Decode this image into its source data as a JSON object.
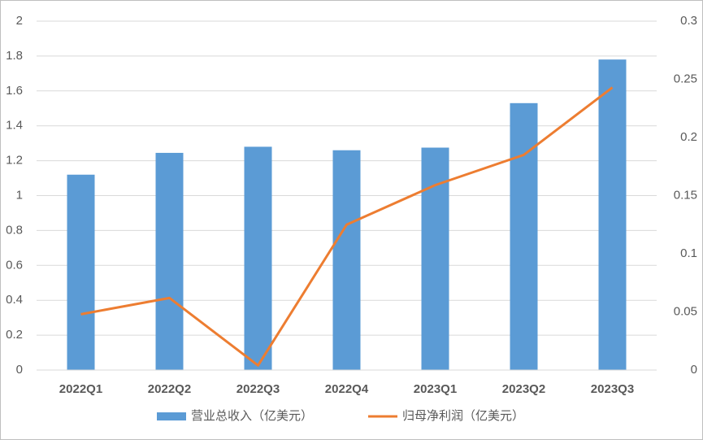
{
  "chart_data": {
    "type": "bar-line",
    "categories": [
      "2022Q1",
      "2022Q2",
      "2022Q3",
      "2022Q4",
      "2023Q1",
      "2023Q2",
      "2023Q3"
    ],
    "series": [
      {
        "name": "营业总收入（亿美元）",
        "type": "bar",
        "color": "#5b9bd5",
        "values": [
          1.12,
          1.245,
          1.28,
          1.26,
          1.275,
          1.53,
          1.78
        ]
      },
      {
        "name": "归母净利润（亿美元）",
        "type": "line",
        "axis": "y2",
        "color": "#ed7d31",
        "values": [
          0.048,
          0.062,
          0.004,
          0.125,
          0.159,
          0.185,
          0.243
        ]
      }
    ],
    "ylim": [
      0,
      2
    ],
    "yticks": [
      0,
      0.2,
      0.4,
      0.6,
      0.8,
      1,
      1.2,
      1.4,
      1.6,
      1.8,
      2
    ],
    "y2lim": [
      0,
      0.3
    ],
    "y2ticks": [
      0,
      0.05,
      0.1,
      0.15,
      0.2,
      0.25,
      0.3
    ],
    "grid": true,
    "legend": "bottom"
  }
}
